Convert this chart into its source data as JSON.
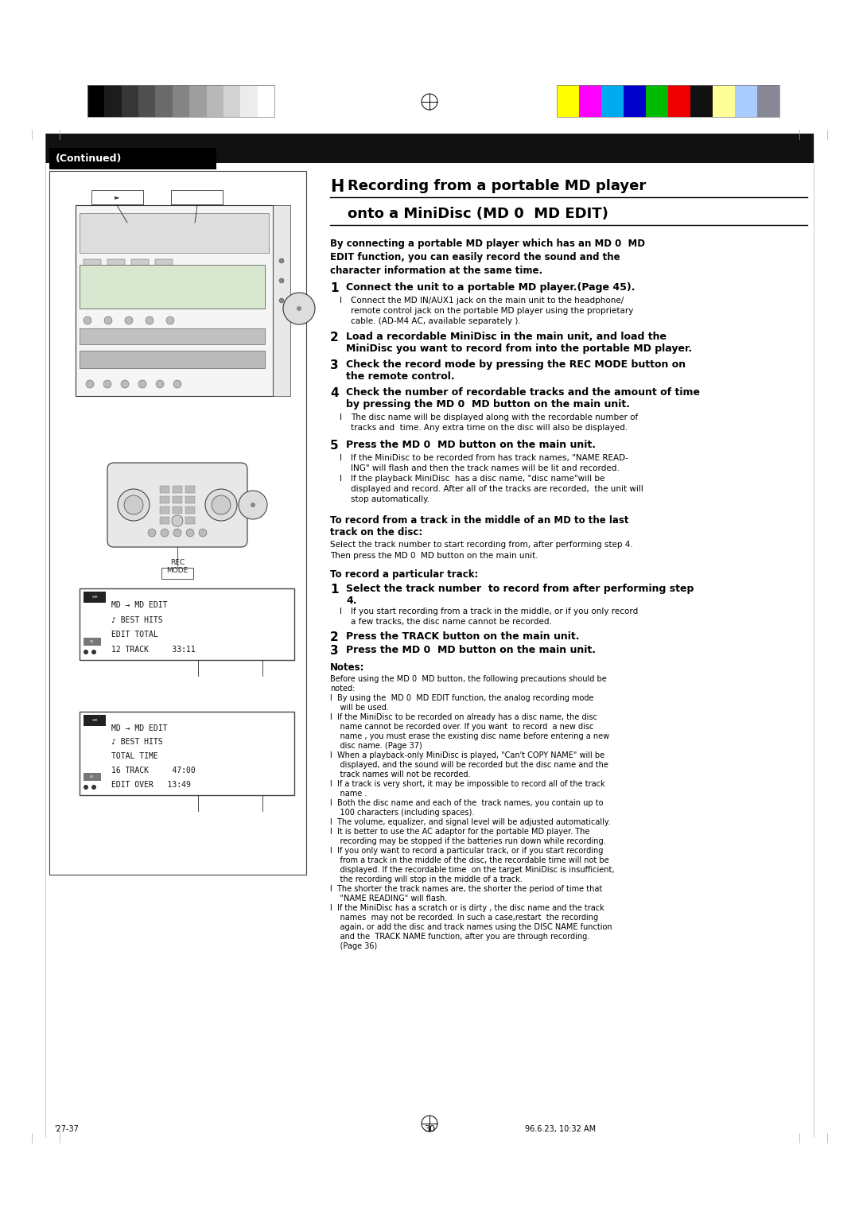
{
  "page_width": 10.8,
  "page_height": 15.28,
  "bg_color": "#ffffff",
  "continued_text": "(Continued)",
  "title_H": "H",
  "title_line1": "Recording from a portable MD player",
  "title_line2": "onto a MiniDisc (MD 0  MD EDIT)",
  "intro_lines": [
    "By connecting a portable MD player which has an MD 0  MD",
    "EDIT function, you can easily record the sound and the",
    "character information at the same time."
  ],
  "step1_num": "1",
  "step1_text": "Connect the unit to a portable MD player.(Page 45).",
  "step1i_text1": "Connect the MD IN/AUX1 jack on the main unit to the headphone/",
  "step1i_text2": "remote control jack on the portable MD player using the proprietary",
  "step1i_text3": "cable. (AD-M4 AC, available separately ).",
  "step2_num": "2",
  "step2_text1": "Load a recordable MiniDisc in the main unit, and load the",
  "step2_text2": "MiniDisc you want to record from into the portable MD player.",
  "step3_num": "3",
  "step3_text1": "Check the record mode by pressing the REC MODE button on",
  "step3_text2": "the remote control.",
  "step4_num": "4",
  "step4_text1": "Check the number of recordable tracks and the amount of time",
  "step4_text2": "by pressing the MD 0  MD button on the main unit.",
  "step4i_text1": "The disc name will be displayed along with the recordable number of",
  "step4i_text2": "tracks and  time. Any extra time on the disc will also be displayed.",
  "step5_num": "5",
  "step5_text": "Press the MD 0  MD button on the main unit.",
  "step5i1_text1": "If the MiniDisc to be recorded from has track names, \"NAME READ-",
  "step5i1_text2": "ING\" will flash and then the track names will be lit and recorded.",
  "step5i2_text1": "If the playback MiniDisc  has a disc name, \"disc name\"will be",
  "step5i2_text2": "displayed and record. After all of the tracks are recorded,  the unit will",
  "step5i2_text3": "stop automatically.",
  "sec2_title1": "To record from a track in the middle of an MD to the last",
  "sec2_title2": "track on the disc:",
  "sec2_body1": "Select the track number to start recording from, after performing step 4.",
  "sec2_body2": "Then press the MD 0  MD button on the main unit.",
  "sec3_title": "To record a particular track:",
  "sec3_s1_num": "1",
  "sec3_s1_text1": "Select the track number  to record from after performing step",
  "sec3_s1_text2": "4.",
  "sec3_s1i_text1": "If you start recording from a track in the middle, or if you only record",
  "sec3_s1i_text2": "a few tracks, the disc name cannot be recorded.",
  "sec3_s2_num": "2",
  "sec3_s2_text": "Press the TRACK button on the main unit.",
  "sec3_s3_num": "3",
  "sec3_s3_text": "Press the MD 0  MD button on the main unit.",
  "notes_title": "Notes:",
  "notes_lines": [
    "Before using the MD 0  MD button, the following precautions should be",
    "noted:",
    "l  By using the  MD 0  MD EDIT function, the analog recording mode",
    "    will be used.",
    "l  If the MiniDisc to be recorded on already has a disc name, the disc",
    "    name cannot be recorded over. If you want  to record  a new disc",
    "    name , you must erase the existing disc name before entering a new",
    "    disc name. (Page 37)",
    "l  When a playback-only MiniDisc is played, \"Can't COPY NAME\" will be",
    "    displayed, and the sound will be recorded but the disc name and the",
    "    track names will not be recorded.",
    "l  If a track is very short, it may be impossible to record all of the track",
    "    name .",
    "l  Both the disc name and each of the  track names, you contain up to",
    "    100 characters (including spaces).",
    "l  The volume, equalizer, and signal level will be adjusted automatically.",
    "l  It is better to use the AC adaptor for the portable MD player. The",
    "    recording may be stopped if the batteries run down while recording.",
    "l  If you only want to record a particular track, or if you start recording",
    "    from a track in the middle of the disc, the recordable time will not be",
    "    displayed. If the recordable time  on the target MiniDisc is insufficient,",
    "    the recording will stop in the middle of a track.",
    "l  The shorter the track names are, the shorter the period of time that",
    "    \"NAME READING\" will flash.",
    "l  If the MiniDisc has a scratch or is dirty , the disc name and the track",
    "    names  may not be recorded. In such a case,restart  the recording",
    "    again, or add the disc and track names using the DISC NAME function",
    "    and the  TRACK NAME function, after you are through recording.",
    "    (Page 36)"
  ],
  "display1_lines": [
    "MD → MD EDIT",
    "♪ BEST HITS",
    "EDIT TOTAL",
    "12 TRACK     33:11"
  ],
  "display2_lines": [
    "MD → MD EDIT",
    "♪ BEST HITS",
    "TOTAL TIME",
    "16 TRACK     47:00",
    "EDIT OVER   13:49"
  ],
  "footer_left": "'27-37",
  "footer_center": "30",
  "footer_right": "96.6.23, 10:32 AM",
  "gray_colors": [
    "#000000",
    "#1c1c1c",
    "#363636",
    "#505050",
    "#6a6a6a",
    "#848484",
    "#9e9e9e",
    "#b8b8b8",
    "#d2d2d2",
    "#ececec",
    "#ffffff"
  ],
  "color_bars": [
    "#ffff00",
    "#ff00ff",
    "#00aaee",
    "#0000cc",
    "#00bb00",
    "#ee0000",
    "#111111",
    "#ffff99",
    "#aaccff",
    "#888899"
  ]
}
